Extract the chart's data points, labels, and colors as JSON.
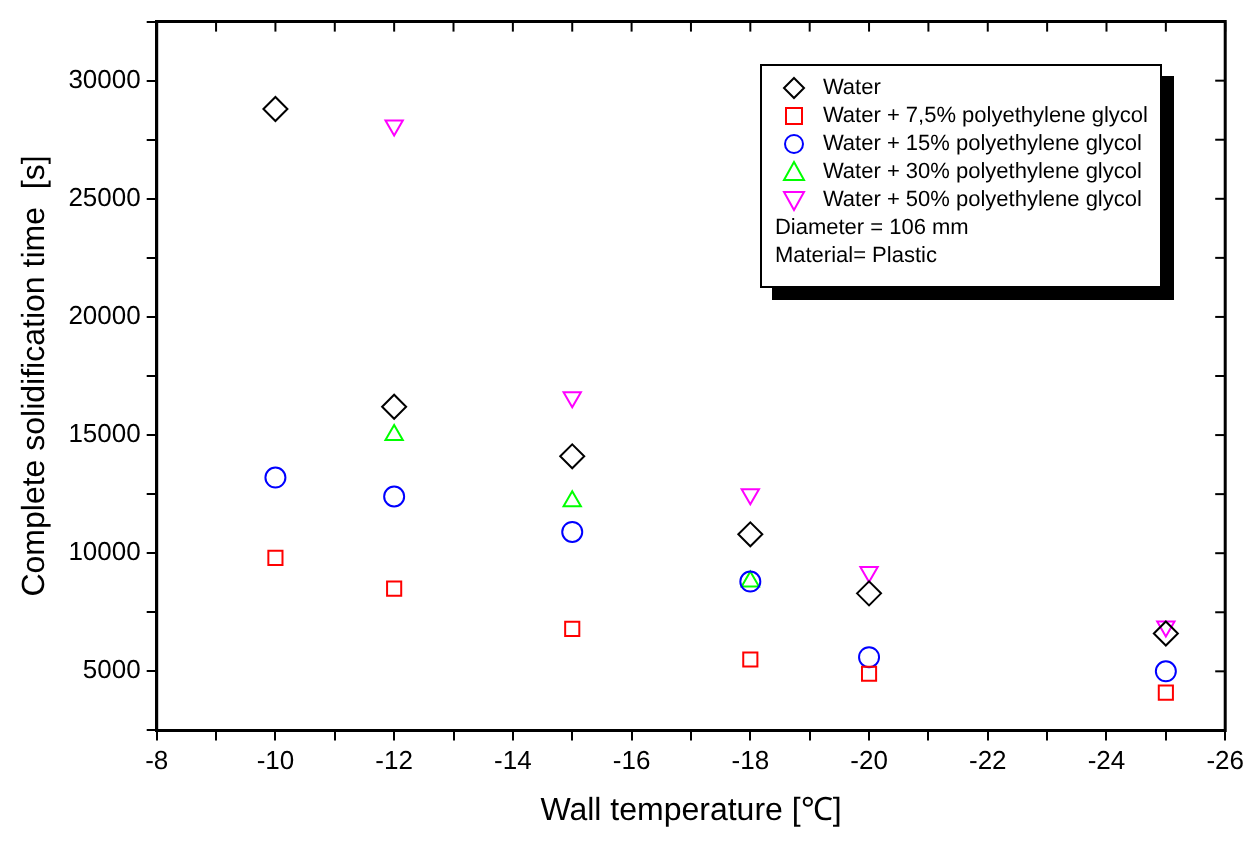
{
  "chart_data": {
    "type": "scatter",
    "xlabel": "Wall temperature [℃]",
    "ylabel": "Complete solidification time  [s]",
    "x": [
      -10,
      -12,
      -15,
      -18,
      -20,
      -25
    ],
    "series": [
      {
        "name": "Water",
        "color": "#000000",
        "marker": "diamond",
        "values": [
          28800,
          16200,
          14100,
          10800,
          8300,
          6600
        ]
      },
      {
        "name": "Water + 7,5% polyethylene glycol",
        "color": "#ff0000",
        "marker": "square",
        "values": [
          9800,
          8500,
          6800,
          5500,
          4900,
          4100
        ]
      },
      {
        "name": "Water + 15% polyethylene glycol",
        "color": "#0000ff",
        "marker": "circle",
        "values": [
          13200,
          12400,
          10900,
          8800,
          5600,
          5000
        ]
      },
      {
        "name": "Water + 30% polyethylene glycol",
        "color": "#00ff00",
        "marker": "triangle",
        "values": [
          null,
          15000,
          12200,
          8800,
          null,
          null
        ]
      },
      {
        "name": "Water + 50% polyethylene glycol",
        "color": "#ff00ff",
        "marker": "triangle-down",
        "values": [
          null,
          28100,
          16600,
          12500,
          9200,
          6900
        ]
      }
    ],
    "annotations": [
      "Diameter = 106 mm",
      "Material= Plastic"
    ],
    "xlim": [
      -8,
      -26
    ],
    "xticks": [
      -8,
      {
        "value": -9,
        "label": null
      },
      -10,
      {
        "value": -11,
        "label": null
      },
      -12,
      {
        "value": -13,
        "label": null
      },
      -14,
      {
        "value": -15,
        "label": null
      },
      -16,
      {
        "value": -17,
        "label": null
      },
      -18,
      {
        "value": -19,
        "label": null
      },
      -20,
      {
        "value": -21,
        "label": null
      },
      -22,
      {
        "value": -23,
        "label": null
      },
      -24,
      {
        "value": -25,
        "label": null
      },
      -26
    ],
    "ylim": [
      2500,
      32500
    ],
    "yticks": [
      {
        "value": 2500,
        "label": null
      },
      5000,
      {
        "value": 7500,
        "label": null
      },
      10000,
      {
        "value": 12500,
        "label": null
      },
      15000,
      {
        "value": 17500,
        "label": null
      },
      20000,
      {
        "value": 22500,
        "label": null
      },
      25000,
      {
        "value": 27500,
        "label": null
      },
      30000,
      {
        "value": 32500,
        "label": null
      }
    ],
    "legend": "top right",
    "grid": false
  }
}
